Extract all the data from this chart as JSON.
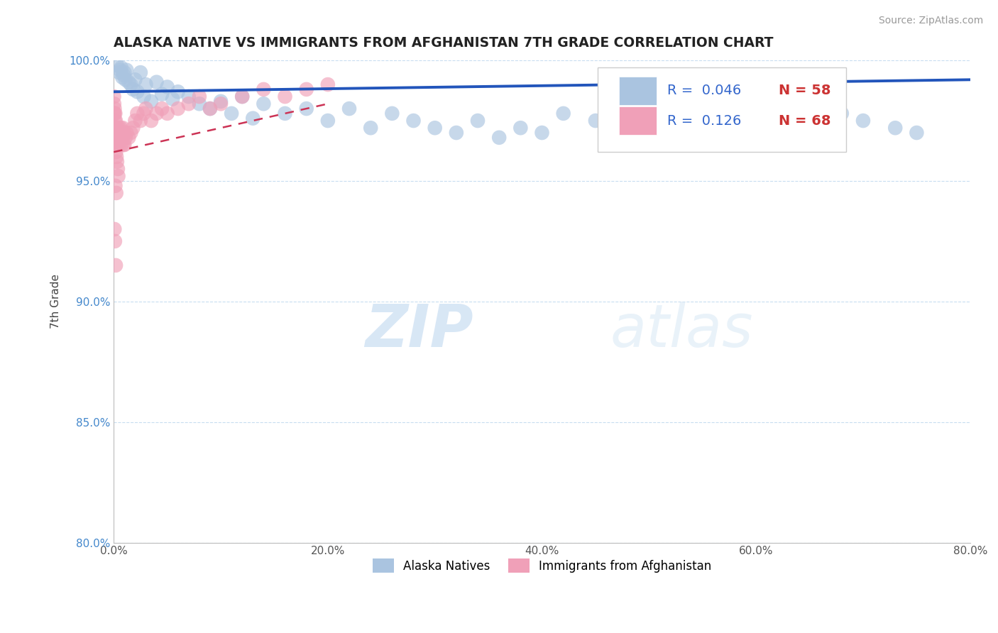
{
  "title": "ALASKA NATIVE VS IMMIGRANTS FROM AFGHANISTAN 7TH GRADE CORRELATION CHART",
  "source": "Source: ZipAtlas.com",
  "ylabel": "7th Grade",
  "xlim": [
    0.0,
    80.0
  ],
  "ylim": [
    80.0,
    100.0
  ],
  "xtick_labels": [
    "0.0%",
    "20.0%",
    "40.0%",
    "60.0%",
    "80.0%"
  ],
  "xtick_values": [
    0.0,
    20.0,
    40.0,
    60.0,
    80.0
  ],
  "ytick_labels": [
    "80.0%",
    "85.0%",
    "90.0%",
    "95.0%",
    "100.0%"
  ],
  "ytick_values": [
    80.0,
    85.0,
    90.0,
    95.0,
    100.0
  ],
  "legend_R_blue": "0.046",
  "legend_N_blue": "58",
  "legend_R_pink": "0.126",
  "legend_N_pink": "68",
  "blue_color": "#aac4e0",
  "pink_color": "#f0a0b8",
  "blue_line_color": "#2255bb",
  "pink_line_color": "#cc3355",
  "watermark_zip": "ZIP",
  "watermark_atlas": "atlas",
  "alaska_natives_x": [
    0.3,
    0.5,
    0.6,
    0.7,
    0.8,
    0.9,
    1.0,
    1.1,
    1.2,
    1.4,
    1.6,
    1.8,
    2.0,
    2.2,
    2.5,
    2.8,
    3.0,
    3.5,
    4.0,
    4.5,
    5.0,
    5.5,
    6.0,
    7.0,
    8.0,
    9.0,
    10.0,
    11.0,
    12.0,
    13.0,
    14.0,
    16.0,
    18.0,
    20.0,
    22.0,
    24.0,
    26.0,
    28.0,
    30.0,
    32.0,
    34.0,
    36.0,
    38.0,
    40.0,
    42.0,
    45.0,
    48.0,
    50.0,
    53.0,
    56.0,
    58.0,
    60.0,
    63.0,
    65.0,
    68.0,
    70.0,
    73.0,
    75.0
  ],
  "alaska_natives_y": [
    99.8,
    99.5,
    99.6,
    99.7,
    99.3,
    99.4,
    99.5,
    99.2,
    99.6,
    99.1,
    99.0,
    98.8,
    99.2,
    98.7,
    99.5,
    98.5,
    99.0,
    98.3,
    99.1,
    98.6,
    98.9,
    98.4,
    98.7,
    98.5,
    98.2,
    98.0,
    98.3,
    97.8,
    98.5,
    97.6,
    98.2,
    97.8,
    98.0,
    97.5,
    98.0,
    97.2,
    97.8,
    97.5,
    97.2,
    97.0,
    97.5,
    96.8,
    97.2,
    97.0,
    97.8,
    97.5,
    97.0,
    97.8,
    97.5,
    97.2,
    97.0,
    97.5,
    97.2,
    97.5,
    97.8,
    97.5,
    97.2,
    97.0
  ],
  "afghanistan_x": [
    0.02,
    0.04,
    0.06,
    0.08,
    0.1,
    0.12,
    0.14,
    0.16,
    0.18,
    0.2,
    0.22,
    0.25,
    0.28,
    0.3,
    0.33,
    0.36,
    0.4,
    0.44,
    0.48,
    0.52,
    0.56,
    0.6,
    0.65,
    0.7,
    0.75,
    0.8,
    0.85,
    0.9,
    0.95,
    1.0,
    1.1,
    1.2,
    1.4,
    1.6,
    1.8,
    2.0,
    2.2,
    2.5,
    2.8,
    3.0,
    3.5,
    4.0,
    4.5,
    5.0,
    6.0,
    7.0,
    8.0,
    9.0,
    10.0,
    12.0,
    14.0,
    16.0,
    18.0,
    20.0,
    0.05,
    0.09,
    0.13,
    0.17,
    0.21,
    0.26,
    0.31,
    0.38,
    0.15,
    0.23,
    0.07,
    0.11,
    0.19,
    0.42
  ],
  "afghanistan_y": [
    98.5,
    98.2,
    97.8,
    98.0,
    97.5,
    97.2,
    97.8,
    97.0,
    97.5,
    96.8,
    97.2,
    96.5,
    97.0,
    96.8,
    97.2,
    96.5,
    97.0,
    96.8,
    97.2,
    96.5,
    97.0,
    96.8,
    97.2,
    96.5,
    97.0,
    96.8,
    97.2,
    96.5,
    97.0,
    96.5,
    96.8,
    97.0,
    96.8,
    97.0,
    97.2,
    97.5,
    97.8,
    97.5,
    97.8,
    98.0,
    97.5,
    97.8,
    98.0,
    97.8,
    98.0,
    98.2,
    98.5,
    98.0,
    98.2,
    98.5,
    98.8,
    98.5,
    98.8,
    99.0,
    97.8,
    97.0,
    96.8,
    96.5,
    96.2,
    96.0,
    95.8,
    95.5,
    94.8,
    94.5,
    93.0,
    92.5,
    91.5,
    95.2
  ],
  "blue_line_x0": 0.0,
  "blue_line_x1": 80.0,
  "blue_line_y0": 98.7,
  "blue_line_y1": 99.2,
  "pink_line_x0": 0.0,
  "pink_line_x1": 20.0,
  "pink_line_y0": 96.2,
  "pink_line_y1": 98.2
}
